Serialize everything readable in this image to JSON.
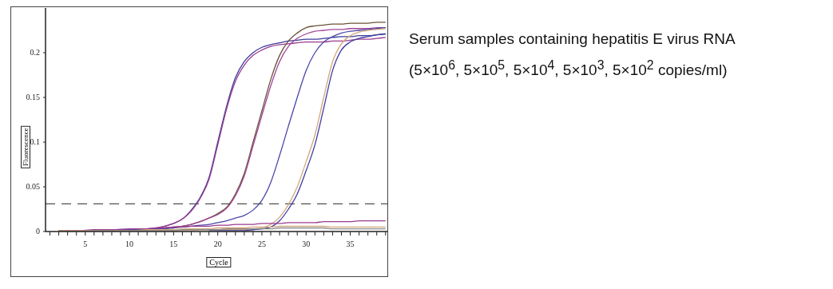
{
  "chart_data": {
    "type": "line",
    "xlabel": "Cycle",
    "ylabel": "Fluorescence",
    "annotations": [
      "Serum samples containing hepatitis E virus RNA",
      "(5×10$^{6}$, 5×10$^{5}$, 5×10$^{4}$, 5×10$^{3}$, 5×10$^{2}$ copies/ml)"
    ],
    "x": [
      2,
      4,
      6,
      8,
      10,
      12,
      13,
      14,
      15,
      16,
      17,
      18,
      19,
      20,
      21,
      22,
      23,
      24,
      25,
      26,
      27,
      28,
      29,
      30,
      31,
      32,
      33,
      34,
      35,
      36,
      37,
      38,
      39
    ],
    "series": [
      {
        "color": "#3c3c9c",
        "values": [
          null,
          null,
          null,
          0.002,
          0.002,
          0.003,
          0.004,
          0.006,
          0.009,
          0.014,
          0.024,
          0.038,
          0.06,
          0.1,
          0.14,
          0.172,
          0.19,
          0.2,
          0.206,
          0.209,
          0.211,
          0.213,
          0.214,
          0.215,
          0.215,
          0.216,
          0.217,
          0.218,
          0.218,
          0.219,
          0.219,
          0.22,
          0.221
        ]
      },
      {
        "color": "#9a3b8e",
        "values": [
          0.001,
          0.001,
          0.001,
          0.002,
          0.002,
          0.003,
          0.004,
          0.006,
          0.009,
          0.014,
          0.023,
          0.037,
          0.058,
          0.097,
          0.137,
          0.168,
          0.186,
          0.197,
          0.203,
          0.207,
          0.209,
          0.21,
          0.211,
          0.212,
          0.212,
          0.212,
          0.213,
          0.213,
          0.214,
          0.215,
          0.215,
          0.216,
          0.217
        ]
      },
      {
        "color": "#6b5338",
        "values": [
          0.001,
          0.001,
          0.001,
          0.002,
          0.002,
          0.003,
          0.003,
          0.004,
          0.005,
          0.006,
          0.008,
          0.011,
          0.015,
          0.02,
          0.027,
          0.042,
          0.065,
          0.1,
          0.135,
          0.17,
          0.197,
          0.213,
          0.222,
          0.228,
          0.23,
          0.231,
          0.232,
          0.232,
          0.233,
          0.233,
          0.233,
          0.234,
          0.234
        ]
      },
      {
        "color": "#a0449a",
        "values": [
          0.001,
          0.001,
          0.001,
          0.002,
          0.002,
          0.003,
          0.003,
          0.004,
          0.005,
          0.006,
          0.008,
          0.011,
          0.015,
          0.019,
          0.026,
          0.04,
          0.062,
          0.096,
          0.13,
          0.163,
          0.19,
          0.207,
          0.216,
          0.221,
          0.224,
          0.225,
          0.226,
          0.226,
          0.227,
          0.227,
          0.227,
          0.228,
          0.228
        ]
      },
      {
        "color": "#4a46a8",
        "values": [
          null,
          null,
          null,
          0.001,
          0.002,
          0.002,
          0.003,
          0.003,
          0.004,
          0.005,
          0.006,
          0.007,
          0.008,
          0.01,
          0.012,
          0.015,
          0.018,
          0.024,
          0.035,
          0.055,
          0.085,
          0.118,
          0.15,
          0.18,
          0.2,
          0.212,
          0.218,
          0.222,
          0.224,
          0.225,
          0.226,
          0.227,
          0.228
        ]
      },
      {
        "color": "#d2a67c",
        "values": [
          0.0,
          0.0,
          0.001,
          0.001,
          0.001,
          0.001,
          0.001,
          0.001,
          0.001,
          0.001,
          0.001,
          0.002,
          0.002,
          0.002,
          0.002,
          0.002,
          0.002,
          0.003,
          0.004,
          0.008,
          0.016,
          0.03,
          0.05,
          0.078,
          0.108,
          0.15,
          0.19,
          0.21,
          0.219,
          0.223,
          0.225,
          0.226,
          0.227
        ]
      },
      {
        "color": "#3e3ea0",
        "values": [
          null,
          null,
          null,
          null,
          null,
          null,
          null,
          null,
          null,
          null,
          null,
          null,
          0.001,
          0.001,
          0.001,
          0.001,
          0.001,
          0.002,
          0.003,
          0.005,
          0.012,
          0.025,
          0.042,
          0.068,
          0.097,
          0.138,
          0.18,
          0.203,
          0.212,
          0.216,
          0.218,
          0.22,
          0.221
        ]
      },
      {
        "color": "#9a3b8e",
        "values": [
          0.001,
          0.001,
          0.002,
          0.002,
          0.003,
          0.003,
          0.004,
          0.004,
          0.005,
          0.005,
          0.006,
          0.006,
          0.006,
          0.007,
          0.007,
          0.008,
          0.008,
          0.008,
          0.009,
          0.009,
          0.009,
          0.01,
          0.01,
          0.01,
          0.01,
          0.011,
          0.011,
          0.011,
          0.011,
          0.012,
          0.012,
          0.012,
          0.012
        ]
      },
      {
        "color": "#d2a67c",
        "values": [
          0.001,
          0.001,
          0.001,
          0.001,
          0.001,
          0.002,
          0.002,
          0.002,
          0.002,
          0.003,
          0.003,
          0.003,
          0.003,
          0.004,
          0.004,
          0.004,
          0.004,
          0.005,
          0.005,
          0.005,
          0.006,
          0.006,
          0.006,
          0.006,
          0.006,
          0.006,
          0.005,
          0.005,
          0.005,
          0.005,
          0.005,
          0.005,
          0.005
        ]
      },
      {
        "color": "#8a8a8a",
        "values": [
          0.0,
          0.0,
          0.001,
          0.001,
          0.001,
          0.001,
          0.001,
          0.001,
          0.001,
          0.002,
          0.002,
          0.002,
          0.002,
          0.002,
          0.003,
          0.003,
          0.003,
          0.003,
          0.003,
          0.003,
          0.004,
          0.004,
          0.004,
          0.004,
          0.004,
          0.004,
          0.003,
          0.003,
          0.003,
          0.003,
          0.003,
          0.003,
          0.003
        ]
      }
    ],
    "xlim": [
      0.5,
      39.2
    ],
    "xticks": [
      {
        "value": 1,
        "label": null
      },
      {
        "value": 2,
        "label": null
      },
      {
        "value": 3,
        "label": null
      },
      {
        "value": 4,
        "label": null
      },
      5,
      {
        "value": 6,
        "label": null
      },
      {
        "value": 7,
        "label": null
      },
      {
        "value": 8,
        "label": null
      },
      {
        "value": 9,
        "label": null
      },
      10,
      {
        "value": 11,
        "label": null
      },
      {
        "value": 12,
        "label": null
      },
      {
        "value": 13,
        "label": null
      },
      {
        "value": 14,
        "label": null
      },
      15,
      {
        "value": 16,
        "label": null
      },
      {
        "value": 17,
        "label": null
      },
      {
        "value": 18,
        "label": null
      },
      {
        "value": 19,
        "label": null
      },
      20,
      {
        "value": 21,
        "label": null
      },
      {
        "value": 22,
        "label": null
      },
      {
        "value": 23,
        "label": null
      },
      {
        "value": 24,
        "label": null
      },
      25,
      {
        "value": 26,
        "label": null
      },
      {
        "value": 27,
        "label": null
      },
      {
        "value": 28,
        "label": null
      },
      {
        "value": 29,
        "label": null
      },
      30,
      {
        "value": 31,
        "label": null
      },
      {
        "value": 32,
        "label": null
      },
      {
        "value": 33,
        "label": null
      },
      {
        "value": 34,
        "label": null
      },
      35,
      {
        "value": 36,
        "label": null
      },
      {
        "value": 37,
        "label": null
      },
      {
        "value": 38,
        "label": null
      },
      {
        "value": 39,
        "label": null
      }
    ],
    "ylim": [
      0,
      0.25
    ],
    "yticks": [
      0,
      0.05,
      0.1,
      0.15,
      0.2
    ],
    "ref_lines": [
      {
        "axis": "y",
        "value": 0.031,
        "color": "#222222",
        "line_style": "dashed"
      }
    ],
    "grid": false,
    "marker": "none",
    "line_style": "solid"
  }
}
